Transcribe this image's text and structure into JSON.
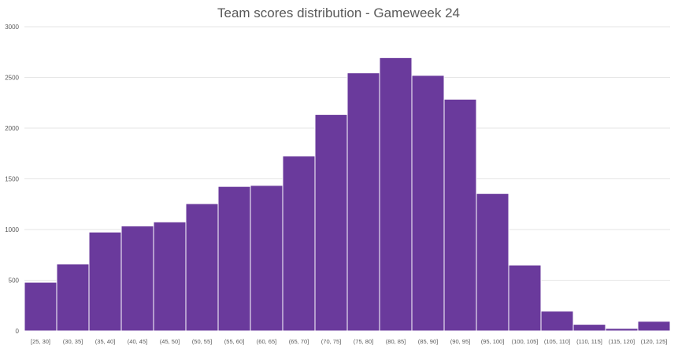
{
  "chart_data": {
    "type": "bar",
    "title": "Team scores distribution - Gameweek 24",
    "xlabel": "",
    "ylabel": "",
    "categories": [
      "[25, 30]",
      "(30, 35]",
      "(35, 40]",
      "(40, 45]",
      "(45, 50]",
      "(50, 55]",
      "(55, 60]",
      "(60, 65]",
      "(65, 70]",
      "(70, 75]",
      "(75, 80]",
      "(80, 85]",
      "(85, 90]",
      "(90, 95]",
      "(95, 100]",
      "(100, 105]",
      "(105, 110]",
      "(110, 115]",
      "(115, 120]",
      "(120, 125]"
    ],
    "values": [
      480,
      660,
      975,
      1035,
      1075,
      1255,
      1425,
      1435,
      1725,
      2135,
      2545,
      2695,
      2520,
      2285,
      1355,
      650,
      195,
      65,
      25,
      95
    ],
    "ylim": [
      0,
      3000
    ],
    "yticks": [
      0,
      500,
      1000,
      1500,
      2000,
      2500,
      3000
    ],
    "grid": true,
    "legend": "none",
    "bar_color": "#6a3a9c"
  }
}
